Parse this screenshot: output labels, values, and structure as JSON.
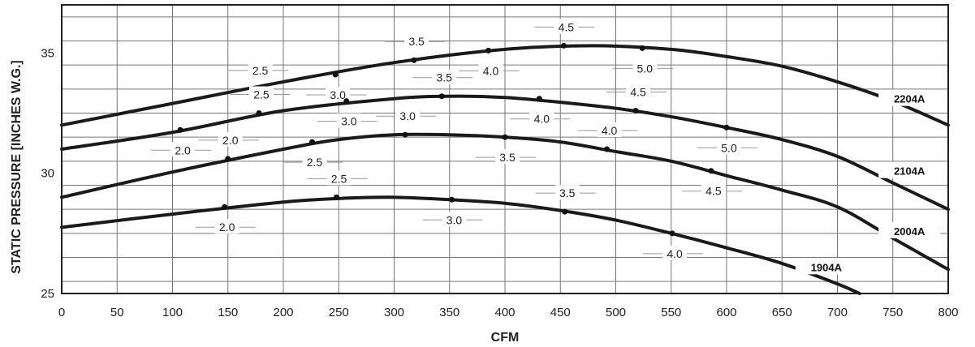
{
  "chart_data": {
    "type": "line",
    "title": "",
    "xlabel": "CFM",
    "ylabel": "STATIC PRESSURE [INCHES W.G.]",
    "xlim": [
      0,
      800
    ],
    "ylim": [
      25,
      37
    ],
    "x_ticks": [
      "0",
      "50",
      "100",
      "150",
      "200",
      "250",
      "300",
      "350",
      "400",
      "450",
      "500",
      "550",
      "600",
      "650",
      "700",
      "750",
      "800"
    ],
    "y_ticks": [
      "25",
      "30",
      "35"
    ],
    "grid": true,
    "series": [
      {
        "name": "2204A",
        "curve": [
          [
            0,
            32.0
          ],
          [
            100,
            32.9
          ],
          [
            200,
            33.8
          ],
          [
            300,
            34.6
          ],
          [
            400,
            35.15
          ],
          [
            480,
            35.3
          ],
          [
            550,
            35.15
          ],
          [
            600,
            34.85
          ],
          [
            650,
            34.45
          ],
          [
            700,
            33.8
          ],
          [
            750,
            33.0
          ],
          [
            800,
            32.0
          ]
        ],
        "points": [
          {
            "x": 177,
            "y": 33.5,
            "label": "2.5"
          },
          {
            "x": 247,
            "y": 34.1,
            "label": "3.0"
          },
          {
            "x": 318,
            "y": 34.7,
            "label": "3.5"
          },
          {
            "x": 385,
            "y": 35.1,
            "label": "4.0"
          },
          {
            "x": 453,
            "y": 35.3,
            "label": "4.5"
          },
          {
            "x": 524,
            "y": 35.2,
            "label": "5.0"
          }
        ]
      },
      {
        "name": "2104A",
        "curve": [
          [
            0,
            31.0
          ],
          [
            100,
            31.7
          ],
          [
            200,
            32.6
          ],
          [
            300,
            33.1
          ],
          [
            350,
            33.2
          ],
          [
            400,
            33.15
          ],
          [
            450,
            32.95
          ],
          [
            500,
            32.7
          ],
          [
            550,
            32.35
          ],
          [
            600,
            31.9
          ],
          [
            650,
            31.4
          ],
          [
            700,
            30.7
          ],
          [
            750,
            29.6
          ],
          [
            800,
            28.5
          ]
        ],
        "points": [
          {
            "x": 107,
            "y": 31.8,
            "label": "2.0"
          },
          {
            "x": 178,
            "y": 32.5,
            "label": "2.5"
          },
          {
            "x": 257,
            "y": 33.0,
            "label": "3.0"
          },
          {
            "x": 343,
            "y": 33.2,
            "label": "3.5"
          },
          {
            "x": 431,
            "y": 33.1,
            "label": "4.0"
          },
          {
            "x": 518,
            "y": 32.6,
            "label": "4.5"
          },
          {
            "x": 600,
            "y": 31.9,
            "label": "5.0"
          }
        ]
      },
      {
        "name": "2004A",
        "curve": [
          [
            0,
            29.0
          ],
          [
            100,
            30.05
          ],
          [
            200,
            31.0
          ],
          [
            250,
            31.4
          ],
          [
            300,
            31.6
          ],
          [
            350,
            31.6
          ],
          [
            400,
            31.5
          ],
          [
            450,
            31.3
          ],
          [
            500,
            30.9
          ],
          [
            550,
            30.5
          ],
          [
            600,
            29.9
          ],
          [
            650,
            29.3
          ],
          [
            700,
            28.6
          ],
          [
            750,
            27.3
          ],
          [
            800,
            26.0
          ]
        ],
        "points": [
          {
            "x": 150,
            "y": 30.6,
            "label": "2.0"
          },
          {
            "x": 226,
            "y": 31.3,
            "label": "2.5"
          },
          {
            "x": 310,
            "y": 31.6,
            "label": "3.0"
          },
          {
            "x": 400,
            "y": 31.5,
            "label": "3.5"
          },
          {
            "x": 492,
            "y": 31.0,
            "label": "4.0"
          },
          {
            "x": 586,
            "y": 30.1,
            "label": "4.5"
          }
        ]
      },
      {
        "name": "1904A",
        "curve": [
          [
            0,
            27.75
          ],
          [
            100,
            28.3
          ],
          [
            200,
            28.8
          ],
          [
            250,
            28.95
          ],
          [
            300,
            29.0
          ],
          [
            350,
            28.9
          ],
          [
            400,
            28.75
          ],
          [
            450,
            28.45
          ],
          [
            500,
            28.05
          ],
          [
            550,
            27.5
          ],
          [
            600,
            26.9
          ],
          [
            650,
            26.25
          ],
          [
            700,
            25.4
          ],
          [
            720,
            25.0
          ]
        ],
        "points": [
          {
            "x": 147,
            "y": 28.6,
            "label": "2.0"
          },
          {
            "x": 248,
            "y": 29.0,
            "label": "2.5"
          },
          {
            "x": 352,
            "y": 28.9,
            "label": "3.0"
          },
          {
            "x": 454,
            "y": 28.4,
            "label": "3.5"
          },
          {
            "x": 551,
            "y": 27.5,
            "label": "4.0"
          }
        ]
      }
    ]
  }
}
